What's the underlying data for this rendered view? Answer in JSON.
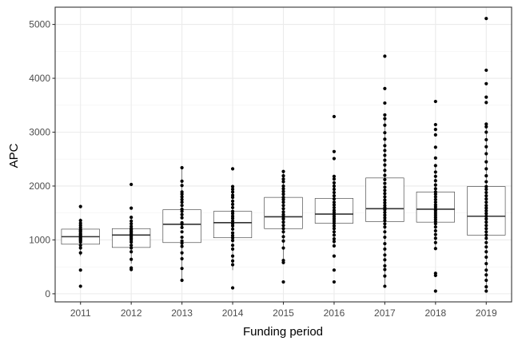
{
  "chart_data": {
    "type": "boxplot",
    "xlabel": "Funding period",
    "ylabel": "APC",
    "ylim": [
      -150,
      5320
    ],
    "yticks": [
      0,
      1000,
      2000,
      3000,
      4000,
      5000
    ],
    "yticks_minor": [
      500,
      1500,
      2500,
      3500,
      4500
    ],
    "grid": true,
    "categories": [
      "2011",
      "2012",
      "2013",
      "2014",
      "2015",
      "2016",
      "2017",
      "2018",
      "2019"
    ],
    "boxes": [
      {
        "x": "2011",
        "q1": 920,
        "median": 1060,
        "q3": 1200,
        "whisker_low": 700,
        "whisker_high": 1400
      },
      {
        "x": "2012",
        "q1": 860,
        "median": 1090,
        "q3": 1210,
        "whisker_low": 560,
        "whisker_high": 1430
      },
      {
        "x": "2013",
        "q1": 950,
        "median": 1290,
        "q3": 1560,
        "whisker_low": 250,
        "whisker_high": 2340
      },
      {
        "x": "2014",
        "q1": 1040,
        "median": 1320,
        "q3": 1530,
        "whisker_low": 440,
        "whisker_high": 2010
      },
      {
        "x": "2015",
        "q1": 1210,
        "median": 1430,
        "q3": 1790,
        "whisker_low": 560,
        "whisker_high": 2270
      },
      {
        "x": "2016",
        "q1": 1310,
        "median": 1480,
        "q3": 1770,
        "whisker_low": 880,
        "whisker_high": 2190
      },
      {
        "x": "2017",
        "q1": 1340,
        "median": 1580,
        "q3": 2150,
        "whisker_low": 140,
        "whisker_high": 3320
      },
      {
        "x": "2018",
        "q1": 1330,
        "median": 1570,
        "q3": 1890,
        "whisker_low": 840,
        "whisker_high": 2380
      },
      {
        "x": "2019",
        "q1": 1090,
        "median": 1440,
        "q3": 1990,
        "whisker_low": 50,
        "whisker_high": 3150
      }
    ],
    "points": [
      {
        "x": "2011",
        "y": [
          140,
          440,
          760,
          850,
          900,
          960,
          990,
          1010,
          1030,
          1050,
          1080,
          1100,
          1120,
          1150,
          1170,
          1190,
          1230,
          1270,
          1310,
          1360,
          1620
        ]
      },
      {
        "x": "2012",
        "y": [
          450,
          480,
          640,
          780,
          850,
          900,
          960,
          1000,
          1030,
          1060,
          1090,
          1110,
          1140,
          1160,
          1190,
          1210,
          1250,
          1300,
          1350,
          1420,
          1590,
          2030
        ]
      },
      {
        "x": "2013",
        "y": [
          250,
          470,
          650,
          760,
          880,
          940,
          980,
          1050,
          1150,
          1230,
          1290,
          1320,
          1410,
          1470,
          1530,
          1570,
          1640,
          1700,
          1750,
          1800,
          1850,
          1890,
          2010,
          2090,
          2340
        ]
      },
      {
        "x": "2014",
        "y": [
          110,
          540,
          610,
          700,
          830,
          900,
          990,
          1040,
          1080,
          1130,
          1200,
          1260,
          1300,
          1350,
          1400,
          1440,
          1490,
          1530,
          1600,
          1660,
          1720,
          1790,
          1830,
          1890,
          1940,
          1990,
          2320
        ]
      },
      {
        "x": "2015",
        "y": [
          220,
          580,
          620,
          850,
          980,
          1060,
          1150,
          1210,
          1270,
          1330,
          1390,
          1430,
          1470,
          1520,
          1580,
          1640,
          1700,
          1750,
          1790,
          1850,
          1900,
          1950,
          2000,
          2080,
          2130,
          2190,
          2270
        ]
      },
      {
        "x": "2016",
        "y": [
          220,
          440,
          700,
          890,
          970,
          1020,
          1090,
          1150,
          1210,
          1260,
          1310,
          1350,
          1390,
          1430,
          1470,
          1510,
          1550,
          1600,
          1650,
          1700,
          1760,
          1820,
          1880,
          1940,
          2000,
          2060,
          2130,
          2180,
          2510,
          2640,
          3290
        ]
      },
      {
        "x": "2017",
        "y": [
          140,
          330,
          450,
          520,
          630,
          720,
          830,
          930,
          1050,
          1150,
          1240,
          1300,
          1360,
          1410,
          1460,
          1510,
          1560,
          1600,
          1640,
          1690,
          1740,
          1800,
          1860,
          1920,
          1980,
          2050,
          2120,
          2200,
          2290,
          2390,
          2480,
          2570,
          2660,
          2750,
          2870,
          2990,
          3130,
          3250,
          3320,
          3540,
          3810,
          4410
        ]
      },
      {
        "x": "2018",
        "y": [
          50,
          340,
          380,
          840,
          950,
          1030,
          1100,
          1170,
          1240,
          1300,
          1340,
          1380,
          1420,
          1460,
          1500,
          1540,
          1570,
          1610,
          1650,
          1700,
          1750,
          1800,
          1850,
          1890,
          1950,
          2020,
          2100,
          2180,
          2260,
          2380,
          2520,
          2720,
          2950,
          3050,
          3140,
          3570
        ]
      },
      {
        "x": "2019",
        "y": [
          50,
          130,
          250,
          350,
          440,
          560,
          680,
          780,
          870,
          950,
          1030,
          1090,
          1150,
          1210,
          1270,
          1330,
          1390,
          1440,
          1490,
          1540,
          1590,
          1640,
          1700,
          1760,
          1820,
          1880,
          1940,
          1990,
          2080,
          2190,
          2320,
          2450,
          2600,
          2730,
          2860,
          3000,
          3100,
          3150,
          3550,
          3650,
          3900,
          4150,
          5110
        ]
      }
    ]
  }
}
